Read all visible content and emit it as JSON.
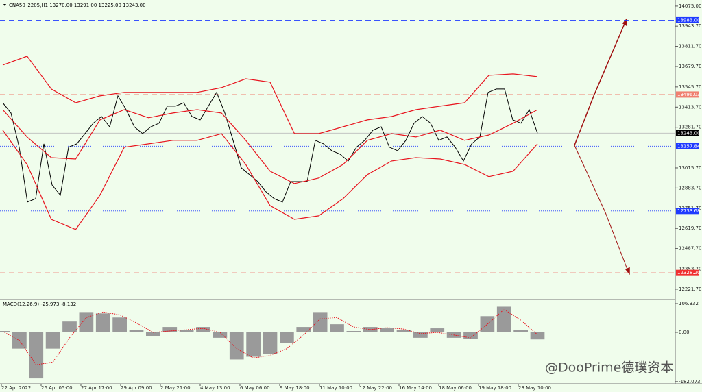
{
  "chart_data": [
    {
      "type": "line",
      "title": "CNA50_2205,H1 13270.00 13291.00 13225.00 13243.00",
      "ylim": [
        12154,
        14115
      ],
      "yticks": [
        {
          "value": 14075,
          "label": "14075.00"
        },
        {
          "value": 13943.7,
          "label": "13943.70"
        },
        {
          "value": 13811.7,
          "label": "13811.70"
        },
        {
          "value": 13679.7,
          "label": "13679.70"
        },
        {
          "value": 13545.7,
          "label": "13545.70"
        },
        {
          "value": 13413.7,
          "label": "13413.70"
        },
        {
          "value": 13281.7,
          "label": "13281.70"
        },
        {
          "value": 13015.7,
          "label": "13015.70"
        },
        {
          "value": 12883.7,
          "label": "12883.70"
        },
        {
          "value": 12751.7,
          "label": "12751.70"
        },
        {
          "value": 12619.7,
          "label": "12619.70"
        },
        {
          "value": 12487.7,
          "label": "12487.70"
        },
        {
          "value": 12353.7,
          "label": "12353.70"
        },
        {
          "value": 12221.7,
          "label": "12221.70"
        }
      ],
      "x_labels": [
        "22 Apr 2022",
        "26 Apr 05:00",
        "27 Apr 17:00",
        "29 Apr 09:00",
        "2 May 21:00",
        "4 May 13:00",
        "6 May 06:00",
        "9 May 18:00",
        "11 May 10:00",
        "12 May 22:00",
        "16 May 14:00",
        "18 May 06:00",
        "19 May 18:00",
        "23 May 10:00"
      ],
      "levels": [
        {
          "value": 13983,
          "label": "13983.00",
          "color": "#1f3bff",
          "dash": "8,5"
        },
        {
          "value": 13496.03,
          "label": "13496.03",
          "color": "#f08070",
          "dash": "8,5"
        },
        {
          "value": 13243,
          "label": "13243.00",
          "color": "#000000",
          "dash": ""
        },
        {
          "value": 13157.84,
          "label": "13157.84",
          "color": "#1f3bff",
          "dash": "1,2"
        },
        {
          "value": 12733.68,
          "label": "12733.68",
          "color": "#1f3bff",
          "dash": "1,2"
        },
        {
          "value": 12328.2,
          "label": "12328.20",
          "color": "#f03030",
          "dash": "8,5"
        }
      ],
      "series": [
        {
          "name": "Price",
          "color": "#000000",
          "values": [
            13442,
            13375,
            13151,
            12792,
            12814,
            13173,
            12904,
            12837,
            13151,
            13173,
            13240,
            13308,
            13352,
            13285,
            13487,
            13397,
            13285,
            13240,
            13285,
            13308,
            13420,
            13420,
            13442,
            13352,
            13330,
            13420,
            13510,
            13375,
            13196,
            13016,
            12971,
            12926,
            12859,
            12814,
            12792,
            12926,
            12926,
            12926,
            13196,
            13173,
            13128,
            13106,
            13061,
            13151,
            13196,
            13263,
            13285,
            13151,
            13128,
            13196,
            13308,
            13352,
            13308,
            13196,
            13218,
            13151,
            13061,
            13173,
            13218,
            13510,
            13532,
            13532,
            13330,
            13308,
            13397,
            13243
          ]
        },
        {
          "name": "BB Mid",
          "color": "#e8141e",
          "values": [
            13397,
            13218,
            13083,
            13074,
            13330,
            13397,
            13344,
            13375,
            13397,
            13375,
            13196,
            12994,
            12913,
            12949,
            13038,
            13196,
            13240,
            13218,
            13263,
            13196,
            13231,
            13308,
            13397
          ]
        },
        {
          "name": "BB Upper",
          "color": "#e8141e",
          "values": [
            13689,
            13747,
            13532,
            13442,
            13487,
            13510,
            13510,
            13510,
            13510,
            13541,
            13599,
            13577,
            13240,
            13240,
            13285,
            13330,
            13352,
            13397,
            13420,
            13442,
            13622,
            13631,
            13613
          ]
        },
        {
          "name": "BB Lower",
          "color": "#e8141e",
          "values": [
            13263,
            13038,
            12679,
            12612,
            12837,
            13151,
            13173,
            13196,
            13196,
            13240,
            13038,
            12769,
            12679,
            12702,
            12814,
            12971,
            13061,
            13083,
            13074,
            13038,
            12958,
            12994,
            13173
          ]
        }
      ]
    },
    {
      "type": "macd",
      "title": "MACD(12,26,9) -25.973 -8.132",
      "ylim": [
        -185,
        119
      ],
      "yticks": [
        106.332,
        {
          "value": 0,
          "label": "0.00"
        },
        -182.073
      ],
      "series": [
        {
          "name": "MACD",
          "color": "#9a9a9a",
          "values": [
            5,
            -60,
            -170,
            -60,
            40,
            75,
            70,
            55,
            10,
            -15,
            20,
            10,
            20,
            -20,
            -100,
            -90,
            -80,
            -40,
            20,
            75,
            30,
            5,
            20,
            15,
            10,
            -20,
            15,
            -20,
            -25,
            60,
            95,
            10,
            -25.973
          ]
        },
        {
          "name": "Signal",
          "color": "#e8141e",
          "values": [
            3,
            -30,
            -120,
            -110,
            -20,
            55,
            75,
            65,
            35,
            0,
            5,
            10,
            15,
            0,
            -60,
            -95,
            -85,
            -60,
            -10,
            50,
            55,
            20,
            10,
            18,
            12,
            -5,
            0,
            -10,
            -20,
            30,
            85,
            45,
            -8.132
          ]
        }
      ]
    }
  ],
  "watermark": "@DooPrime德璞资本"
}
